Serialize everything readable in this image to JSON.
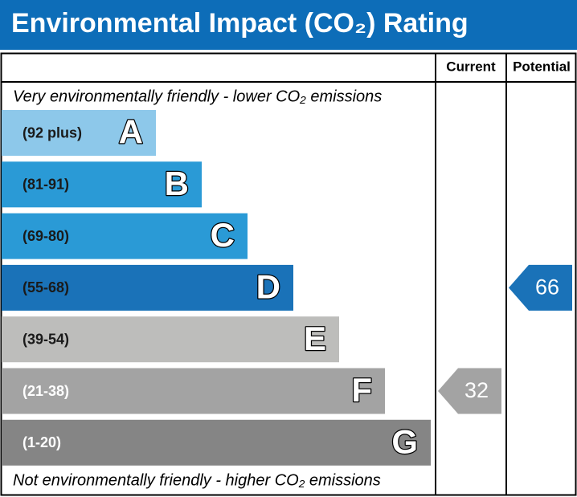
{
  "chart_data": {
    "type": "rating",
    "title": "Environmental Impact (CO₂) Rating",
    "title_color": "#0d6db8",
    "columns": [
      "Current",
      "Potential"
    ],
    "top_note": "Very environmentally friendly - lower CO₂ emissions",
    "bottom_note": "Not environmentally friendly - higher CO₂ emissions",
    "bands": [
      {
        "letter": "A",
        "range": "(92 plus)",
        "color": "#8dc8ea",
        "text_color": "#1a1a1a"
      },
      {
        "letter": "B",
        "range": "(81-91)",
        "color": "#2a9ad6",
        "text_color": "#1a1a1a"
      },
      {
        "letter": "C",
        "range": "(69-80)",
        "color": "#2a9ad6",
        "text_color": "#1a1a1a"
      },
      {
        "letter": "D",
        "range": "(55-68)",
        "color": "#1a72b8",
        "text_color": "#1a1a1a"
      },
      {
        "letter": "E",
        "range": "(39-54)",
        "color": "#bdbdbb",
        "text_color": "#1a1a1a"
      },
      {
        "letter": "F",
        "range": "(21-38)",
        "color": "#a3a3a3",
        "text_color": "#ffffff"
      },
      {
        "letter": "G",
        "range": "(1-20)",
        "color": "#858585",
        "text_color": "#ffffff"
      }
    ],
    "current": {
      "value": 32,
      "color": "#a3a3a3"
    },
    "potential": {
      "value": 66,
      "color": "#1a72b8"
    }
  }
}
